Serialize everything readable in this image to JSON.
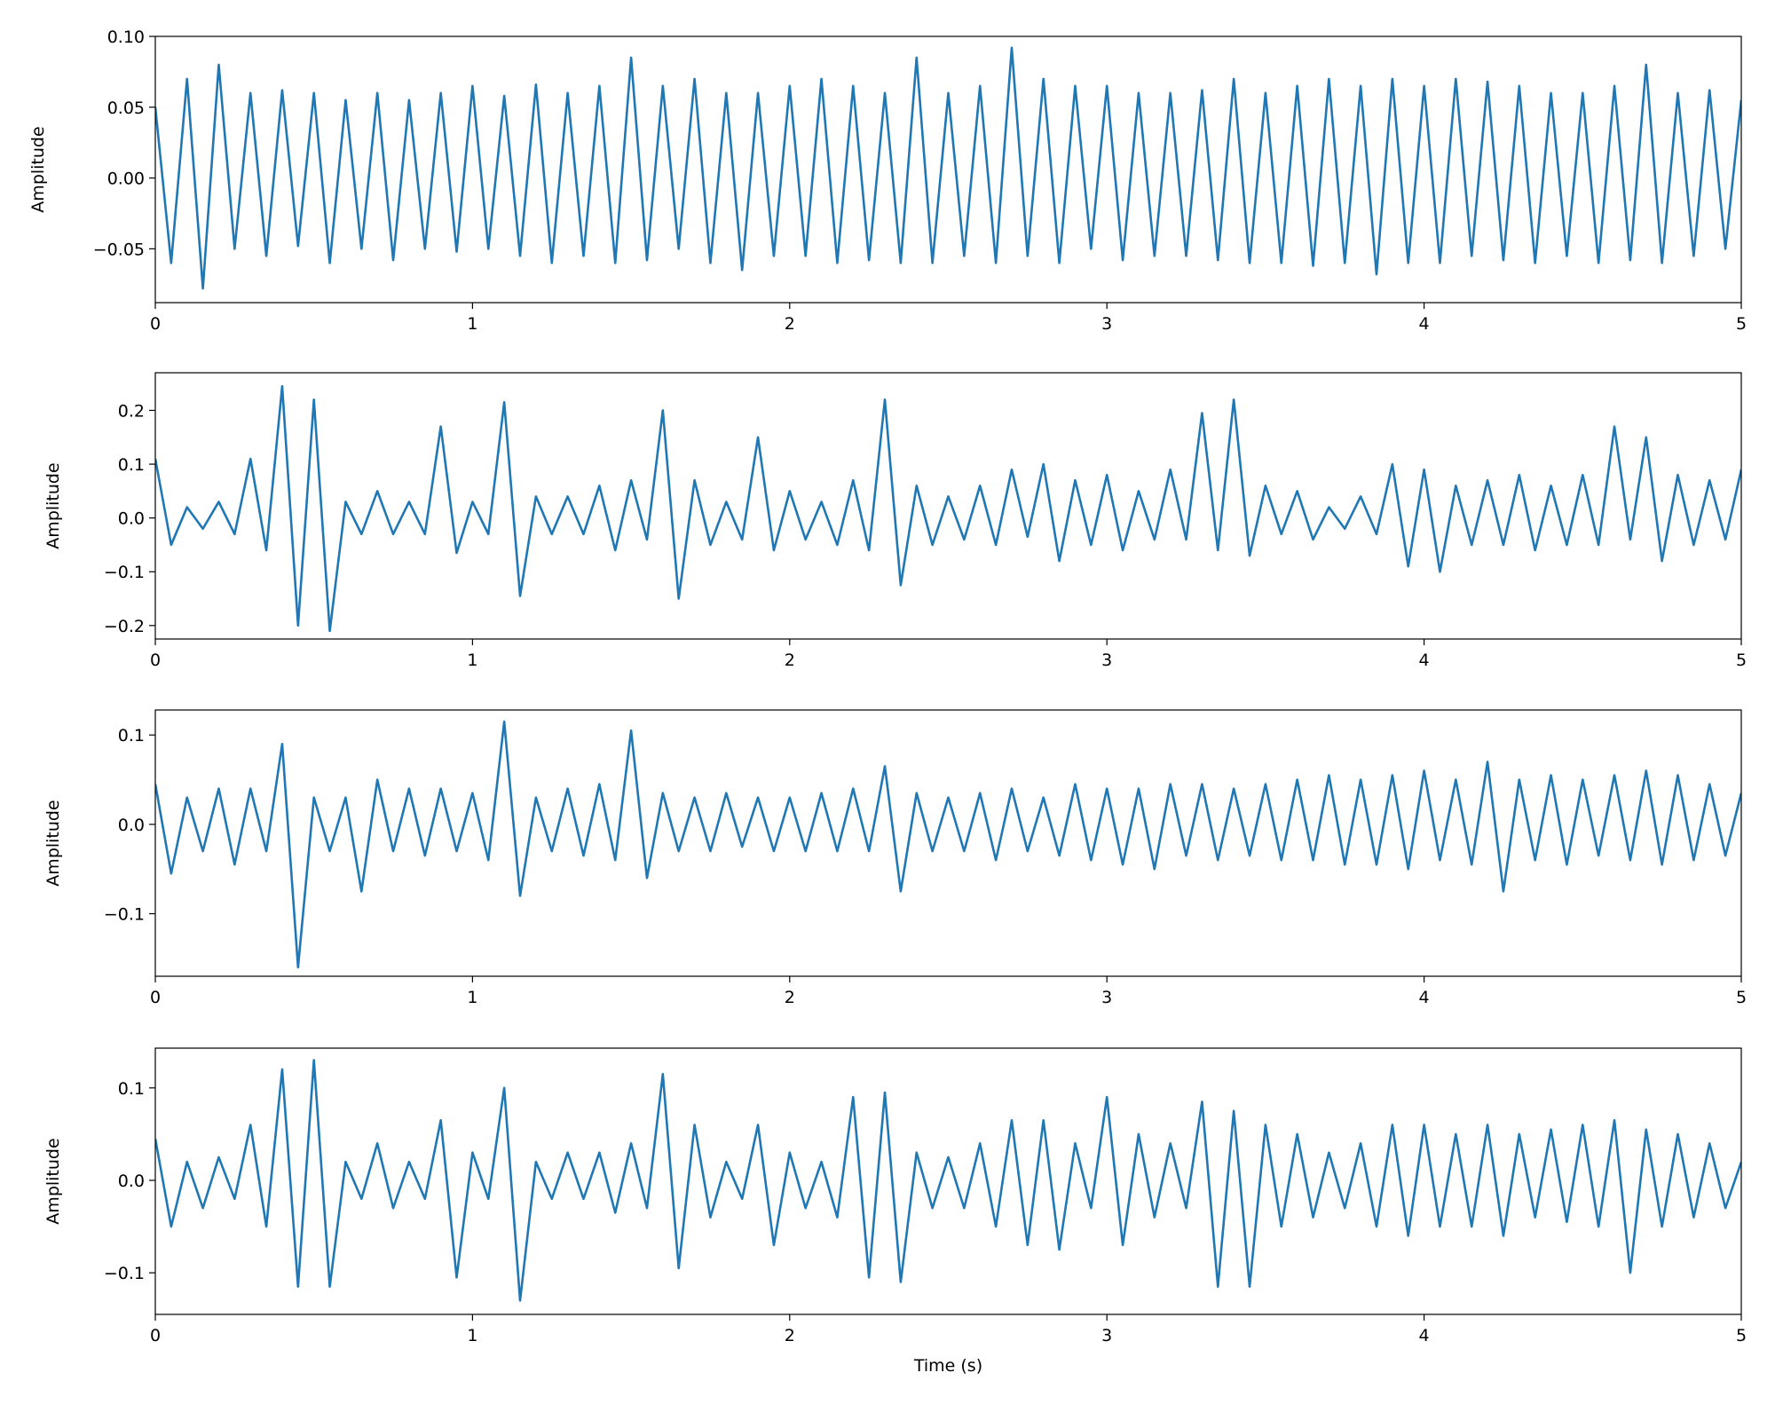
{
  "chart_data": [
    {
      "type": "line",
      "ylabel": "Amplitude",
      "xlim": [
        0,
        5
      ],
      "xticks": [
        0,
        1,
        2,
        3,
        4,
        5
      ],
      "ylim": [
        -0.088,
        0.1
      ],
      "yticks": [
        {
          "value": -0.05,
          "label": "−0.05"
        },
        {
          "value": 0,
          "label": "0.00"
        },
        0.05,
        {
          "value": 0.1,
          "label": "0.10"
        }
      ],
      "x": [
        0,
        0.05,
        0.1,
        0.15,
        0.2,
        0.25,
        0.3,
        0.35,
        0.4,
        0.45,
        0.5,
        0.55,
        0.6,
        0.65,
        0.7,
        0.75,
        0.8,
        0.85,
        0.9,
        0.95,
        1,
        1.05,
        1.1,
        1.15,
        1.2,
        1.25,
        1.3,
        1.35,
        1.4,
        1.45,
        1.5,
        1.55,
        1.6,
        1.65,
        1.7,
        1.75,
        1.8,
        1.85,
        1.9,
        1.95,
        2,
        2.05,
        2.1,
        2.15,
        2.2,
        2.25,
        2.3,
        2.35,
        2.4,
        2.45,
        2.5,
        2.55,
        2.6,
        2.65,
        2.7,
        2.75,
        2.8,
        2.85,
        2.9,
        2.95,
        3,
        3.05,
        3.1,
        3.15,
        3.2,
        3.25,
        3.3,
        3.35,
        3.4,
        3.45,
        3.5,
        3.55,
        3.6,
        3.65,
        3.7,
        3.75,
        3.8,
        3.85,
        3.9,
        3.95,
        4,
        4.05,
        4.1,
        4.15,
        4.2,
        4.25,
        4.3,
        4.35,
        4.4,
        4.45,
        4.5,
        4.55,
        4.6,
        4.65,
        4.7,
        4.75,
        4.8,
        4.85,
        4.9,
        4.95,
        5
      ],
      "series": [
        {
          "color": "#1f77b4",
          "values": [
            0.05,
            -0.06,
            0.07,
            -0.078,
            0.08,
            -0.05,
            0.06,
            -0.055,
            0.062,
            -0.048,
            0.06,
            -0.06,
            0.055,
            -0.05,
            0.06,
            -0.058,
            0.055,
            -0.05,
            0.06,
            -0.052,
            0.065,
            -0.05,
            0.058,
            -0.055,
            0.066,
            -0.06,
            0.06,
            -0.055,
            0.065,
            -0.06,
            0.085,
            -0.058,
            0.065,
            -0.05,
            0.07,
            -0.06,
            0.06,
            -0.065,
            0.06,
            -0.055,
            0.065,
            -0.055,
            0.07,
            -0.06,
            0.065,
            -0.058,
            0.06,
            -0.06,
            0.085,
            -0.06,
            0.06,
            -0.055,
            0.065,
            -0.06,
            0.092,
            -0.055,
            0.07,
            -0.06,
            0.065,
            -0.05,
            0.065,
            -0.058,
            0.06,
            -0.055,
            0.06,
            -0.055,
            0.062,
            -0.058,
            0.07,
            -0.06,
            0.06,
            -0.06,
            0.065,
            -0.062,
            0.07,
            -0.06,
            0.065,
            -0.068,
            0.07,
            -0.06,
            0.065,
            -0.06,
            0.07,
            -0.055,
            0.068,
            -0.058,
            0.065,
            -0.06,
            0.06,
            -0.055,
            0.06,
            -0.06,
            0.065,
            -0.058,
            0.08,
            -0.06,
            0.06,
            -0.055,
            0.062,
            -0.05,
            0.055
          ]
        }
      ]
    },
    {
      "type": "line",
      "ylabel": "Amplitude",
      "xlim": [
        0,
        5
      ],
      "xticks": [
        0,
        1,
        2,
        3,
        4,
        5
      ],
      "ylim": [
        -0.225,
        0.27
      ],
      "yticks": [
        {
          "value": -0.2,
          "label": "−0.2"
        },
        {
          "value": -0.1,
          "label": "−0.1"
        },
        {
          "value": 0,
          "label": "0.0"
        },
        0.1,
        0.2
      ],
      "x": [
        0,
        0.05,
        0.1,
        0.15,
        0.2,
        0.25,
        0.3,
        0.35,
        0.4,
        0.45,
        0.5,
        0.55,
        0.6,
        0.65,
        0.7,
        0.75,
        0.8,
        0.85,
        0.9,
        0.95,
        1,
        1.05,
        1.1,
        1.15,
        1.2,
        1.25,
        1.3,
        1.35,
        1.4,
        1.45,
        1.5,
        1.55,
        1.6,
        1.65,
        1.7,
        1.75,
        1.8,
        1.85,
        1.9,
        1.95,
        2,
        2.05,
        2.1,
        2.15,
        2.2,
        2.25,
        2.3,
        2.35,
        2.4,
        2.45,
        2.5,
        2.55,
        2.6,
        2.65,
        2.7,
        2.75,
        2.8,
        2.85,
        2.9,
        2.95,
        3,
        3.05,
        3.1,
        3.15,
        3.2,
        3.25,
        3.3,
        3.35,
        3.4,
        3.45,
        3.5,
        3.55,
        3.6,
        3.65,
        3.7,
        3.75,
        3.8,
        3.85,
        3.9,
        3.95,
        4,
        4.05,
        4.1,
        4.15,
        4.2,
        4.25,
        4.3,
        4.35,
        4.4,
        4.45,
        4.5,
        4.55,
        4.6,
        4.65,
        4.7,
        4.75,
        4.8,
        4.85,
        4.9,
        4.95,
        5
      ],
      "series": [
        {
          "color": "#1f77b4",
          "values": [
            0.11,
            -0.05,
            0.02,
            -0.02,
            0.03,
            -0.03,
            0.11,
            -0.06,
            0.245,
            -0.2,
            0.22,
            -0.21,
            0.03,
            -0.03,
            0.05,
            -0.03,
            0.03,
            -0.03,
            0.17,
            -0.065,
            0.03,
            -0.03,
            0.215,
            -0.145,
            0.04,
            -0.03,
            0.04,
            -0.03,
            0.06,
            -0.06,
            0.07,
            -0.04,
            0.2,
            -0.15,
            0.07,
            -0.05,
            0.03,
            -0.04,
            0.15,
            -0.06,
            0.05,
            -0.04,
            0.03,
            -0.05,
            0.07,
            -0.06,
            0.22,
            -0.125,
            0.06,
            -0.05,
            0.04,
            -0.04,
            0.06,
            -0.05,
            0.09,
            -0.035,
            0.1,
            -0.08,
            0.07,
            -0.05,
            0.08,
            -0.06,
            0.05,
            -0.04,
            0.09,
            -0.04,
            0.195,
            -0.06,
            0.22,
            -0.07,
            0.06,
            -0.03,
            0.05,
            -0.04,
            0.02,
            -0.02,
            0.04,
            -0.03,
            0.1,
            -0.09,
            0.09,
            -0.1,
            0.06,
            -0.05,
            0.07,
            -0.05,
            0.08,
            -0.06,
            0.06,
            -0.05,
            0.08,
            -0.05,
            0.17,
            -0.04,
            0.15,
            -0.08,
            0.08,
            -0.05,
            0.07,
            -0.04,
            0.09
          ]
        }
      ]
    },
    {
      "type": "line",
      "ylabel": "Amplitude",
      "xlim": [
        0,
        5
      ],
      "xticks": [
        0,
        1,
        2,
        3,
        4,
        5
      ],
      "ylim": [
        -0.17,
        0.128
      ],
      "yticks": [
        {
          "value": -0.1,
          "label": "−0.1"
        },
        {
          "value": 0,
          "label": "0.0"
        },
        0.1
      ],
      "x": [
        0,
        0.05,
        0.1,
        0.15,
        0.2,
        0.25,
        0.3,
        0.35,
        0.4,
        0.45,
        0.5,
        0.55,
        0.6,
        0.65,
        0.7,
        0.75,
        0.8,
        0.85,
        0.9,
        0.95,
        1,
        1.05,
        1.1,
        1.15,
        1.2,
        1.25,
        1.3,
        1.35,
        1.4,
        1.45,
        1.5,
        1.55,
        1.6,
        1.65,
        1.7,
        1.75,
        1.8,
        1.85,
        1.9,
        1.95,
        2,
        2.05,
        2.1,
        2.15,
        2.2,
        2.25,
        2.3,
        2.35,
        2.4,
        2.45,
        2.5,
        2.55,
        2.6,
        2.65,
        2.7,
        2.75,
        2.8,
        2.85,
        2.9,
        2.95,
        3,
        3.05,
        3.1,
        3.15,
        3.2,
        3.25,
        3.3,
        3.35,
        3.4,
        3.45,
        3.5,
        3.55,
        3.6,
        3.65,
        3.7,
        3.75,
        3.8,
        3.85,
        3.9,
        3.95,
        4,
        4.05,
        4.1,
        4.15,
        4.2,
        4.25,
        4.3,
        4.35,
        4.4,
        4.45,
        4.5,
        4.55,
        4.6,
        4.65,
        4.7,
        4.75,
        4.8,
        4.85,
        4.9,
        4.95,
        5
      ],
      "series": [
        {
          "color": "#1f77b4",
          "values": [
            0.045,
            -0.055,
            0.03,
            -0.03,
            0.04,
            -0.045,
            0.04,
            -0.03,
            0.09,
            -0.16,
            0.03,
            -0.03,
            0.03,
            -0.075,
            0.05,
            -0.03,
            0.04,
            -0.035,
            0.04,
            -0.03,
            0.035,
            -0.04,
            0.115,
            -0.08,
            0.03,
            -0.03,
            0.04,
            -0.035,
            0.045,
            -0.04,
            0.105,
            -0.06,
            0.035,
            -0.03,
            0.03,
            -0.03,
            0.035,
            -0.025,
            0.03,
            -0.03,
            0.03,
            -0.03,
            0.035,
            -0.03,
            0.04,
            -0.03,
            0.065,
            -0.075,
            0.035,
            -0.03,
            0.03,
            -0.03,
            0.035,
            -0.04,
            0.04,
            -0.03,
            0.03,
            -0.035,
            0.045,
            -0.04,
            0.04,
            -0.045,
            0.04,
            -0.05,
            0.045,
            -0.035,
            0.045,
            -0.04,
            0.04,
            -0.035,
            0.045,
            -0.04,
            0.05,
            -0.04,
            0.055,
            -0.045,
            0.05,
            -0.045,
            0.055,
            -0.05,
            0.06,
            -0.04,
            0.05,
            -0.045,
            0.07,
            -0.075,
            0.05,
            -0.04,
            0.055,
            -0.045,
            0.05,
            -0.035,
            0.055,
            -0.04,
            0.06,
            -0.045,
            0.055,
            -0.04,
            0.045,
            -0.035,
            0.035
          ]
        }
      ]
    },
    {
      "type": "line",
      "ylabel": "Amplitude",
      "xlabel": "Time (s)",
      "xlim": [
        0,
        5
      ],
      "xticks": [
        0,
        1,
        2,
        3,
        4,
        5
      ],
      "ylim": [
        -0.145,
        0.143
      ],
      "yticks": [
        {
          "value": -0.1,
          "label": "−0.1"
        },
        {
          "value": 0,
          "label": "0.0"
        },
        0.1
      ],
      "x": [
        0,
        0.05,
        0.1,
        0.15,
        0.2,
        0.25,
        0.3,
        0.35,
        0.4,
        0.45,
        0.5,
        0.55,
        0.6,
        0.65,
        0.7,
        0.75,
        0.8,
        0.85,
        0.9,
        0.95,
        1,
        1.05,
        1.1,
        1.15,
        1.2,
        1.25,
        1.3,
        1.35,
        1.4,
        1.45,
        1.5,
        1.55,
        1.6,
        1.65,
        1.7,
        1.75,
        1.8,
        1.85,
        1.9,
        1.95,
        2,
        2.05,
        2.1,
        2.15,
        2.2,
        2.25,
        2.3,
        2.35,
        2.4,
        2.45,
        2.5,
        2.55,
        2.6,
        2.65,
        2.7,
        2.75,
        2.8,
        2.85,
        2.9,
        2.95,
        3,
        3.05,
        3.1,
        3.15,
        3.2,
        3.25,
        3.3,
        3.35,
        3.4,
        3.45,
        3.5,
        3.55,
        3.6,
        3.65,
        3.7,
        3.75,
        3.8,
        3.85,
        3.9,
        3.95,
        4,
        4.05,
        4.1,
        4.15,
        4.2,
        4.25,
        4.3,
        4.35,
        4.4,
        4.45,
        4.5,
        4.55,
        4.6,
        4.65,
        4.7,
        4.75,
        4.8,
        4.85,
        4.9,
        4.95,
        5
      ],
      "series": [
        {
          "color": "#1f77b4",
          "values": [
            0.045,
            -0.05,
            0.02,
            -0.03,
            0.025,
            -0.02,
            0.06,
            -0.05,
            0.12,
            -0.115,
            0.13,
            -0.115,
            0.02,
            -0.02,
            0.04,
            -0.03,
            0.02,
            -0.02,
            0.065,
            -0.105,
            0.03,
            -0.02,
            0.1,
            -0.13,
            0.02,
            -0.02,
            0.03,
            -0.02,
            0.03,
            -0.035,
            0.04,
            -0.03,
            0.115,
            -0.095,
            0.06,
            -0.04,
            0.02,
            -0.02,
            0.06,
            -0.07,
            0.03,
            -0.03,
            0.02,
            -0.04,
            0.09,
            -0.105,
            0.095,
            -0.11,
            0.03,
            -0.03,
            0.025,
            -0.03,
            0.04,
            -0.05,
            0.065,
            -0.07,
            0.065,
            -0.075,
            0.04,
            -0.03,
            0.09,
            -0.07,
            0.05,
            -0.04,
            0.04,
            -0.03,
            0.085,
            -0.115,
            0.075,
            -0.115,
            0.06,
            -0.05,
            0.05,
            -0.04,
            0.03,
            -0.03,
            0.04,
            -0.05,
            0.06,
            -0.06,
            0.06,
            -0.05,
            0.05,
            -0.05,
            0.06,
            -0.06,
            0.05,
            -0.04,
            0.055,
            -0.045,
            0.06,
            -0.05,
            0.065,
            -0.1,
            0.055,
            -0.05,
            0.05,
            -0.04,
            0.04,
            -0.03,
            0.02
          ]
        }
      ]
    }
  ]
}
